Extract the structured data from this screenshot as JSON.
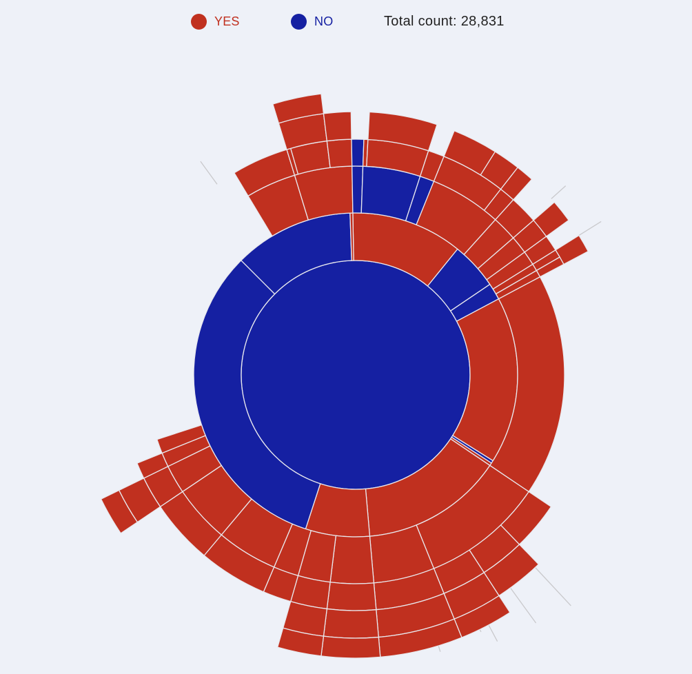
{
  "legend": {
    "yes_label": "YES",
    "no_label": "NO",
    "total_text": "Total count: 28,831"
  },
  "colors": {
    "yes": "#c0301f",
    "no": "#1520a2",
    "background": "#eef1f8",
    "border": "#e9e9ee"
  },
  "chart_data": {
    "type": "sunburst",
    "total": 28831,
    "rings": [
      {
        "level": 1,
        "segments": [
          {
            "class": "NO",
            "start": 0,
            "end": 360
          }
        ]
      },
      {
        "level": 2,
        "segments": [
          {
            "class": "YES",
            "start": 359,
            "end": 399
          },
          {
            "class": "NO",
            "start": 399,
            "end": 416
          },
          {
            "class": "NO",
            "start": 416,
            "end": 422
          },
          {
            "class": "YES",
            "start": 422,
            "end": 482
          },
          {
            "class": "NO",
            "start": 482,
            "end": 483
          },
          {
            "class": "YES",
            "start": 483,
            "end": 484
          },
          {
            "class": "YES",
            "start": 484,
            "end": 535
          },
          {
            "class": "YES",
            "start": 535,
            "end": 558
          },
          {
            "class": "NO",
            "start": 558,
            "end": 675
          },
          {
            "class": "NO",
            "start": 675,
            "end": 718
          },
          {
            "class": "YES",
            "start": 718,
            "end": 719
          }
        ]
      },
      {
        "level": 3,
        "segments": [
          {
            "class": "YES",
            "start": 329,
            "end": 343
          },
          {
            "class": "YES",
            "start": 343,
            "end": 359
          },
          {
            "class": "NO",
            "start": 359,
            "end": 362
          },
          {
            "class": "NO",
            "start": 362,
            "end": 378
          },
          {
            "class": "NO",
            "start": 378,
            "end": 382
          },
          {
            "class": "YES",
            "start": 382,
            "end": 402
          },
          {
            "class": "YES",
            "start": 402,
            "end": 409
          },
          {
            "class": "YES",
            "start": 409,
            "end": 414
          },
          {
            "class": "YES",
            "start": 414,
            "end": 418
          },
          {
            "class": "YES",
            "start": 418,
            "end": 420
          },
          {
            "class": "YES",
            "start": 420,
            "end": 422
          },
          {
            "class": "YES",
            "start": 422,
            "end": 484
          },
          {
            "class": "YES",
            "start": 484,
            "end": 518
          },
          {
            "class": "YES",
            "start": 518,
            "end": 535
          },
          {
            "class": "YES",
            "start": 535,
            "end": 547
          },
          {
            "class": "YES",
            "start": 547,
            "end": 556
          },
          {
            "class": "YES",
            "start": 556,
            "end": 563
          },
          {
            "class": "YES",
            "start": 563,
            "end": 580
          },
          {
            "class": "YES",
            "start": 580,
            "end": 596
          },
          {
            "class": "YES",
            "start": 596,
            "end": 604
          },
          {
            "class": "YES",
            "start": 604,
            "end": 608
          },
          {
            "class": "YES",
            "start": 608,
            "end": 612
          }
        ]
      },
      {
        "level": 4,
        "segments": [
          {
            "class": "YES",
            "start": 329,
            "end": 343
          },
          {
            "class": "YES",
            "start": 343,
            "end": 344
          },
          {
            "class": "YES",
            "start": 344,
            "end": 353
          },
          {
            "class": "YES",
            "start": 353,
            "end": 359
          },
          {
            "class": "NO",
            "start": 359,
            "end": 362
          },
          {
            "class": "YES",
            "start": 362,
            "end": 363
          },
          {
            "class": "YES",
            "start": 363,
            "end": 378
          },
          {
            "class": "YES",
            "start": 378,
            "end": 382
          },
          {
            "class": "YES",
            "start": 382,
            "end": 398
          },
          {
            "class": "YES",
            "start": 398,
            "end": 402
          },
          {
            "class": "YES",
            "start": 402,
            "end": 409
          },
          {
            "class": "YES",
            "start": 409,
            "end": 414
          },
          {
            "class": "YES",
            "start": 414,
            "end": 418
          },
          {
            "class": "YES",
            "start": 418,
            "end": 420
          },
          {
            "class": "YES",
            "start": 420,
            "end": 422
          },
          {
            "class": "YES",
            "start": 484,
            "end": 496
          },
          {
            "class": "YES",
            "start": 496,
            "end": 507
          },
          {
            "class": "YES",
            "start": 507,
            "end": 518
          },
          {
            "class": "YES",
            "start": 518,
            "end": 535
          },
          {
            "class": "YES",
            "start": 535,
            "end": 547
          },
          {
            "class": "YES",
            "start": 547,
            "end": 556
          },
          {
            "class": "YES",
            "start": 556,
            "end": 563
          },
          {
            "class": "YES",
            "start": 563,
            "end": 580
          },
          {
            "class": "YES",
            "start": 580,
            "end": 596
          },
          {
            "class": "YES",
            "start": 596,
            "end": 604
          },
          {
            "class": "YES",
            "start": 604,
            "end": 608
          }
        ]
      },
      {
        "level": 5,
        "segments": [
          {
            "class": "YES",
            "start": 343,
            "end": 353
          },
          {
            "class": "YES",
            "start": 353,
            "end": 359
          },
          {
            "class": "YES",
            "start": 363,
            "end": 378
          },
          {
            "class": "YES",
            "start": 382,
            "end": 392
          },
          {
            "class": "YES",
            "start": 392,
            "end": 398
          },
          {
            "class": "YES",
            "start": 398,
            "end": 402
          },
          {
            "class": "YES",
            "start": 409,
            "end": 414
          },
          {
            "class": "YES",
            "start": 418,
            "end": 422
          },
          {
            "class": "YES",
            "start": 496,
            "end": 507
          },
          {
            "class": "YES",
            "start": 507,
            "end": 518
          },
          {
            "class": "YES",
            "start": 518,
            "end": 535
          },
          {
            "class": "YES",
            "start": 535,
            "end": 547
          },
          {
            "class": "YES",
            "start": 547,
            "end": 556
          },
          {
            "class": "YES",
            "start": 596,
            "end": 604
          }
        ]
      },
      {
        "level": 6,
        "segments": [
          {
            "class": "YES",
            "start": 343,
            "end": 353
          },
          {
            "class": "YES",
            "start": 507,
            "end": 518
          },
          {
            "class": "YES",
            "start": 518,
            "end": 535
          },
          {
            "class": "YES",
            "start": 535,
            "end": 547
          },
          {
            "class": "YES",
            "start": 547,
            "end": 556
          },
          {
            "class": "YES",
            "start": 596,
            "end": 604
          }
        ]
      }
    ]
  }
}
